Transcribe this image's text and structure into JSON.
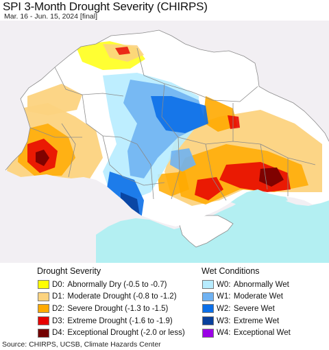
{
  "header": {
    "title": "SPI 3-Month Drought Severity (CHIRPS)",
    "subtitle": "Mar. 16 - Jun. 15, 2024 [final]"
  },
  "legend": {
    "drought_heading": "Drought Severity",
    "wet_heading": "Wet Conditions",
    "drought_items": [
      {
        "code": "D0:",
        "label": "Abnormally Dry (-0.5 to -0.7)",
        "color": "#ffff00"
      },
      {
        "code": "D1:",
        "label": "Moderate Drought (-0.8 to -1.2)",
        "color": "#fcd37f"
      },
      {
        "code": "D2:",
        "label": "Severe Drought (-1.3 to -1.5)",
        "color": "#ffaa00"
      },
      {
        "code": "D3:",
        "label": "Extreme Drought (-1.6 to -1.9)",
        "color": "#e60000"
      },
      {
        "code": "D4:",
        "label": "Exceptional Drought (-2.0 or less)",
        "color": "#730000"
      }
    ],
    "wet_items": [
      {
        "code": "W0:",
        "label": "Abnormally Wet",
        "color": "#b7ecff"
      },
      {
        "code": "W1:",
        "label": "Moderate Wet",
        "color": "#6fb2f2"
      },
      {
        "code": "W2:",
        "label": "Severe Wet",
        "color": "#0b6fe8"
      },
      {
        "code": "W3:",
        "label": "Extreme Wet",
        "color": "#08409c"
      },
      {
        "code": "W4:",
        "label": "Exceptional Wet",
        "color": "#9b00e6"
      }
    ]
  },
  "map": {
    "background_color": "#f2eff3",
    "sea_color": "#b3eff2",
    "border_color": "#8a8a8a"
  },
  "footer": {
    "source": "Source: CHIRPS, UCSB, Climate Hazards Center"
  }
}
